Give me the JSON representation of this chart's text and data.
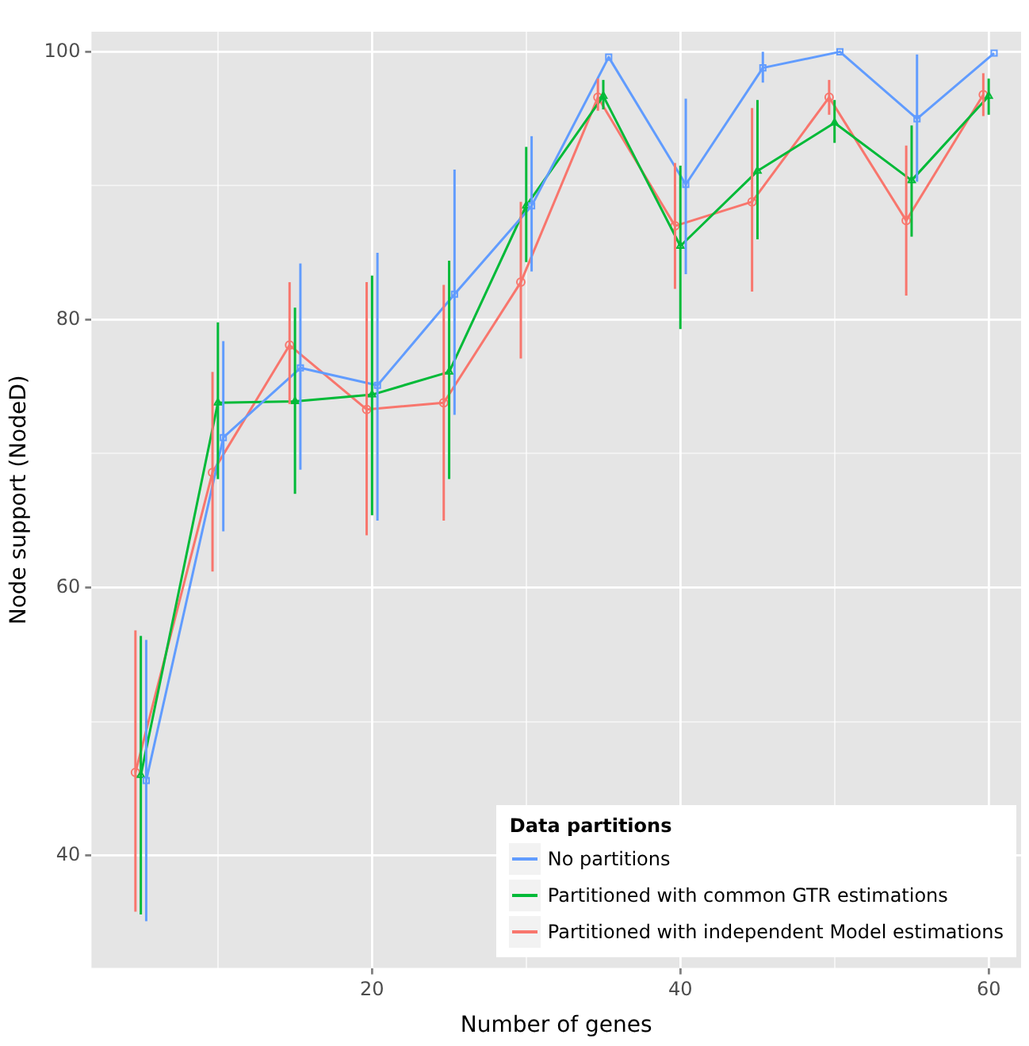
{
  "chart_data": {
    "type": "line",
    "xlabel": "Number of genes",
    "ylabel": "Node support (NodeD)",
    "legend_title": "Data partitions",
    "legend": "bottom right",
    "grid": true,
    "xlim": [
      1.8,
      62.1
    ],
    "ylim": [
      31.6,
      101.5
    ],
    "xticks": [
      {
        "value": 10,
        "label": null
      },
      20,
      {
        "value": 30,
        "label": null
      },
      40,
      {
        "value": 50,
        "label": null
      },
      60
    ],
    "yticks": [
      40,
      {
        "value": 50,
        "label": null
      },
      60,
      {
        "value": 70,
        "label": null
      },
      80,
      {
        "value": 90,
        "label": null
      },
      100
    ],
    "series": [
      {
        "name": "No partitions",
        "color": "#619cff",
        "marker": "square",
        "x": [
          5.35,
          10.35,
          15.35,
          20.35,
          25.35,
          30.35,
          35.35,
          40.35,
          45.35,
          50.35,
          55.35,
          60.35
        ],
        "values": [
          45.6,
          71.2,
          76.4,
          75.1,
          81.9,
          88.5,
          99.6,
          90.1,
          98.8,
          100,
          95.0,
          99.9
        ],
        "errors": [
          [
            35.1,
            56.1
          ],
          [
            64.2,
            78.4
          ],
          [
            68.8,
            84.2
          ],
          [
            65.0,
            85.0
          ],
          [
            72.9,
            91.2
          ],
          [
            83.6,
            93.7
          ],
          null,
          [
            83.4,
            96.5
          ],
          [
            97.7,
            100
          ],
          null,
          [
            90.3,
            99.8
          ],
          null
        ]
      },
      {
        "name": "Partitioned with common GTR estimations",
        "color": "#00ba38",
        "marker": "triangle",
        "x": [
          5,
          10,
          15,
          20,
          25,
          30,
          35,
          40,
          45,
          50,
          55,
          60
        ],
        "values": [
          46.0,
          73.8,
          73.9,
          74.4,
          76.1,
          88.5,
          96.7,
          85.5,
          91.1,
          94.7,
          90.4,
          96.7
        ],
        "errors": [
          [
            35.6,
            56.4
          ],
          [
            68.1,
            79.8
          ],
          [
            67.0,
            80.9
          ],
          [
            65.4,
            83.3
          ],
          [
            68.1,
            84.4
          ],
          [
            84.3,
            92.9
          ],
          [
            95.7,
            97.9
          ],
          [
            79.3,
            91.5
          ],
          [
            86.0,
            96.4
          ],
          [
            93.2,
            96.4
          ],
          [
            86.2,
            94.5
          ],
          [
            95.3,
            98.0
          ]
        ]
      },
      {
        "name": "Partitioned with independent Model estimations",
        "color": "#f8766d",
        "marker": "circle",
        "x": [
          4.65,
          9.65,
          14.65,
          19.65,
          24.65,
          29.65,
          34.65,
          39.65,
          44.65,
          49.65,
          54.65,
          59.65
        ],
        "values": [
          46.2,
          68.6,
          78.1,
          73.3,
          73.8,
          82.8,
          96.6,
          87.0,
          88.8,
          96.6,
          87.4,
          96.8
        ],
        "errors": [
          [
            35.8,
            56.8
          ],
          [
            61.2,
            76.1
          ],
          [
            73.7,
            82.8
          ],
          [
            63.9,
            82.8
          ],
          [
            65.0,
            82.6
          ],
          [
            77.1,
            88.8
          ],
          [
            95.6,
            98.0
          ],
          [
            82.3,
            91.7
          ],
          [
            82.1,
            95.8
          ],
          [
            95.3,
            97.9
          ],
          [
            81.8,
            93.0
          ],
          [
            95.2,
            98.4
          ]
        ]
      }
    ]
  }
}
